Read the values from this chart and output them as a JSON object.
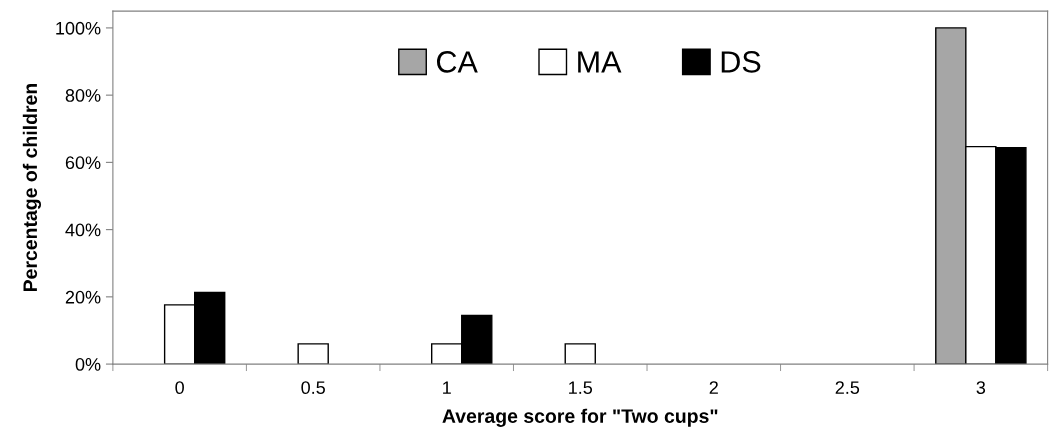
{
  "chart_data": {
    "type": "bar",
    "xlabel": "Average score for \"Two cups\"",
    "ylabel": "Percentage of children",
    "categories": [
      "0",
      "0.5",
      "1",
      "1.5",
      "2",
      "2.5",
      "3"
    ],
    "series": [
      {
        "name": "CA",
        "color": "#a6a6a6",
        "values": [
          0,
          0,
          0,
          0,
          0,
          0,
          100
        ]
      },
      {
        "name": "MA",
        "color": "#ffffff",
        "values": [
          17.6,
          6,
          6,
          6,
          0,
          0,
          64.7
        ]
      },
      {
        "name": "DS",
        "color": "#000000",
        "values": [
          21.3,
          0,
          14.5,
          0,
          0,
          0,
          64.4
        ]
      }
    ],
    "ylim": [
      0,
      105
    ],
    "yticks": [
      {
        "value": 0,
        "label": "0%"
      },
      {
        "value": 20,
        "label": "20%"
      },
      {
        "value": 40,
        "label": "40%"
      },
      {
        "value": 60,
        "label": "60%"
      },
      {
        "value": 80,
        "label": "80%"
      },
      {
        "value": 100,
        "label": "100%"
      }
    ],
    "grid": false,
    "legend": "top"
  }
}
